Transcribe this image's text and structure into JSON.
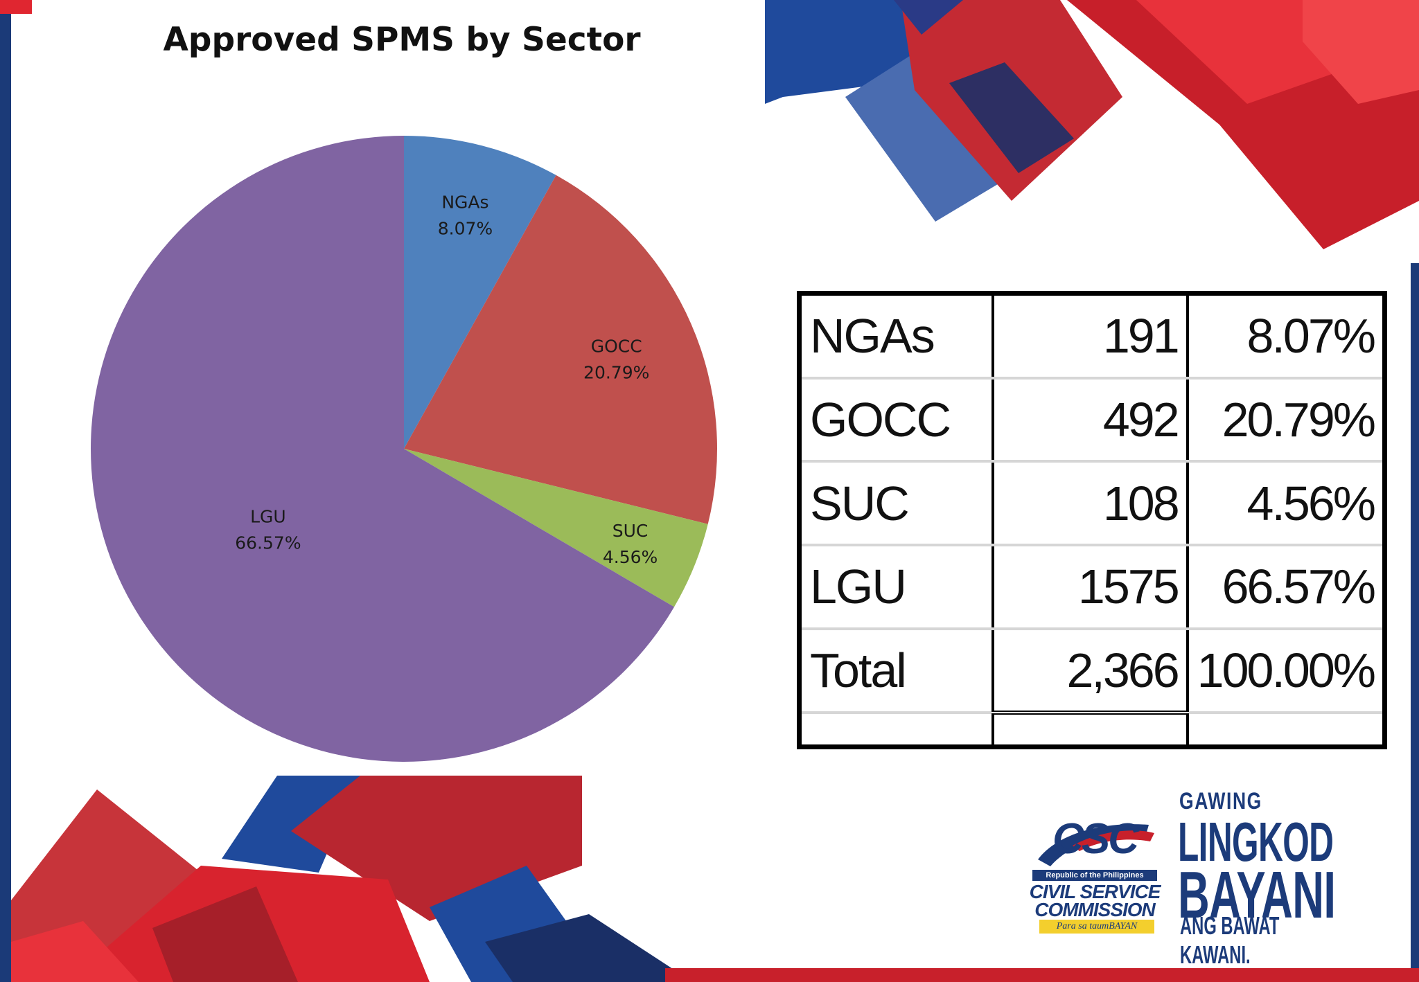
{
  "chart_data": {
    "type": "pie",
    "title": "Approved SPMS by Sector",
    "categories": [
      "NGAs",
      "GOCC",
      "SUC",
      "LGU"
    ],
    "values": [
      191,
      492,
      108,
      1575
    ],
    "percent_labels": [
      "8.07%",
      "20.79%",
      "4.56%",
      "66.57%"
    ],
    "colors": [
      "#4f81bd",
      "#c0504d",
      "#9bbb59",
      "#8064a2"
    ]
  },
  "table": {
    "rows": [
      {
        "sector": "NGAs",
        "count": "191",
        "percent": "8.07%"
      },
      {
        "sector": "GOCC",
        "count": "492",
        "percent": "20.79%"
      },
      {
        "sector": "SUC",
        "count": "108",
        "percent": "4.56%"
      },
      {
        "sector": "LGU",
        "count": "1575",
        "percent": "66.57%"
      }
    ],
    "total": {
      "label": "Total",
      "count": "2,366",
      "percent": "100.00%"
    }
  },
  "logo": {
    "mark": "CSC",
    "republic": "Republic of the Philippines",
    "name_line1": "CIVIL SERVICE",
    "name_line2": "COMMISSION",
    "tagline": "Para sa taumBAYAN"
  },
  "slogan": {
    "line1": "GAWING",
    "line2": "LINGKOD",
    "line3": "BAYANI",
    "line4": "ANG BAWAT KAWANI."
  },
  "colors": {
    "brand_blue": "#1c3b7a",
    "brand_red": "#c8202b"
  }
}
